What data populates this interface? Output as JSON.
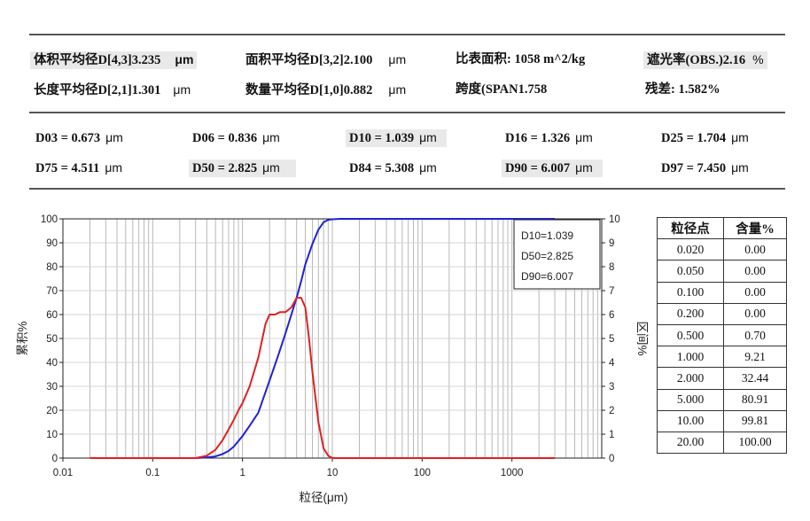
{
  "summary": {
    "vol_mean_label": "体积平均径D[4,3]",
    "vol_mean_value": "3.235",
    "vol_mean_unit": "μm",
    "area_mean_label": "面积平均径D[3,2]",
    "area_mean_value": "2.100",
    "area_mean_unit": "μm",
    "ssa_label": "比表面积:",
    "ssa_value": "1058",
    "ssa_unit": "m^2/kg",
    "obs_label": "遮光率(OBS.)",
    "obs_value": "2.16",
    "obs_unit": "%",
    "len_mean_label": "长度平均径D[2,1]",
    "len_mean_value": "1.301",
    "len_mean_unit": "μm",
    "num_mean_label": "数量平均径D[1,0]",
    "num_mean_value": "0.882",
    "num_mean_unit": "μm",
    "span_label": "跨度(SPAN",
    "span_value": "1.758",
    "residual_label": "残差:",
    "residual_value": "1.582%"
  },
  "percentiles": [
    {
      "label": "D03 = 0.673",
      "unit": "μm",
      "shaded": false
    },
    {
      "label": "D06 = 0.836",
      "unit": "μm",
      "shaded": false
    },
    {
      "label": "D10 = 1.039",
      "unit": "μm",
      "shaded": true
    },
    {
      "label": "D16 = 1.326",
      "unit": "μm",
      "shaded": false
    },
    {
      "label": "D25 = 1.704",
      "unit": "μm",
      "shaded": false
    },
    {
      "label": "D75 = 4.511",
      "unit": "μm",
      "shaded": false
    },
    {
      "label": "D50 = 2.825",
      "unit": "μm",
      "shaded": true
    },
    {
      "label": "D84 = 5.308",
      "unit": "μm",
      "shaded": false
    },
    {
      "label": "D90 = 6.007",
      "unit": "μm",
      "shaded": true
    },
    {
      "label": "D97 = 7.450",
      "unit": "μm",
      "shaded": false
    }
  ],
  "chart_data": {
    "type": "line",
    "xlabel": "粒径(μm)",
    "ylabel_left": "累积%",
    "ylabel_right": "区间%",
    "x_scale": "log",
    "xlim": [
      0.01,
      10000
    ],
    "x_ticks": [
      0.01,
      0.1,
      1,
      10,
      100,
      1000
    ],
    "x_tick_labels": [
      "0.01",
      "0.1",
      "1",
      "10",
      "100",
      "1000"
    ],
    "ylim_left": [
      0,
      100
    ],
    "y_ticks_left": [
      0,
      10,
      20,
      30,
      40,
      50,
      60,
      70,
      80,
      90,
      100
    ],
    "ylim_right": [
      0,
      10
    ],
    "y_ticks_right": [
      0,
      1,
      2,
      3,
      4,
      5,
      6,
      7,
      8,
      9,
      10
    ],
    "grid": true,
    "legend_box": [
      "D10=1.039",
      "D50=2.825",
      "D90=6.007"
    ],
    "legend_position": "top-right",
    "series": [
      {
        "color": "#2020d8",
        "axis": "left",
        "x": [
          0.02,
          0.3,
          0.4,
          0.5,
          0.6,
          0.7,
          0.8,
          1.0,
          1.2,
          1.5,
          2.0,
          2.5,
          3.0,
          3.5,
          4.0,
          4.5,
          5.0,
          6.0,
          7.0,
          8.0,
          9.0,
          10.0,
          12.0,
          3000
        ],
        "y": [
          0,
          0,
          0.3,
          0.7,
          1.7,
          3.0,
          4.8,
          9.21,
          13.5,
          19.0,
          32.44,
          43.0,
          52.0,
          60.0,
          67.0,
          74.0,
          80.91,
          89.5,
          95.5,
          98.6,
          99.6,
          99.81,
          100,
          100
        ]
      },
      {
        "color": "#e02020",
        "axis": "right",
        "x": [
          0.02,
          0.3,
          0.4,
          0.5,
          0.6,
          0.7,
          0.8,
          0.9,
          1.0,
          1.2,
          1.5,
          1.8,
          2.0,
          2.3,
          2.6,
          3.0,
          3.5,
          4.0,
          4.5,
          5.0,
          5.5,
          6.0,
          7.0,
          8.0,
          9.0,
          10.0,
          12.0,
          3000
        ],
        "y": [
          0,
          0,
          0.1,
          0.35,
          0.75,
          1.2,
          1.6,
          2.0,
          2.3,
          3.0,
          4.2,
          5.6,
          6.0,
          6.0,
          6.1,
          6.1,
          6.3,
          6.7,
          6.7,
          6.3,
          5.0,
          3.6,
          1.5,
          0.4,
          0.1,
          0,
          0,
          0
        ]
      }
    ]
  },
  "table": {
    "headers": [
      "粒径点",
      "含量%"
    ],
    "rows": [
      [
        "0.020",
        "0.00"
      ],
      [
        "0.050",
        "0.00"
      ],
      [
        "0.100",
        "0.00"
      ],
      [
        "0.200",
        "0.00"
      ],
      [
        "0.500",
        "0.70"
      ],
      [
        "1.000",
        "9.21"
      ],
      [
        "2.000",
        "32.44"
      ],
      [
        "5.000",
        "80.91"
      ],
      [
        "10.00",
        "99.81"
      ],
      [
        "20.00",
        "100.00"
      ]
    ]
  }
}
